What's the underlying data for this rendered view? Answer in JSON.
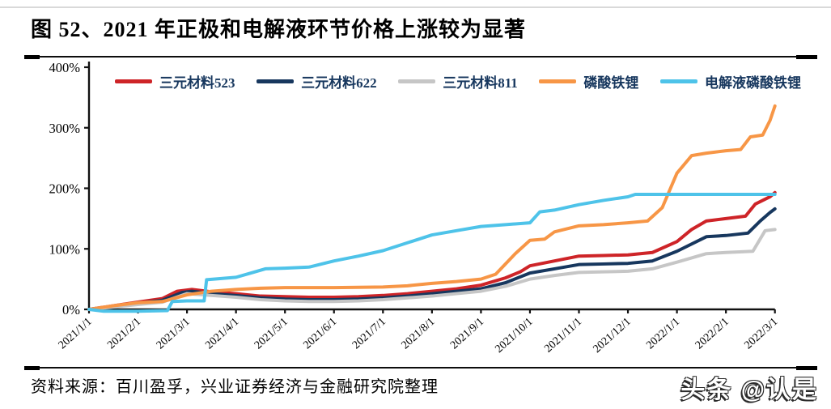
{
  "page": {
    "title": "图 52、2021 年正极和电解液环节价格上涨较为显著",
    "source_note": "资料来源：百川盈孚，兴业证券经济与金融研究院整理",
    "watermark": "头条 @认是"
  },
  "colors": {
    "title_text": "#000000",
    "legend_text": "#17375E",
    "axis": "#111111",
    "rule": "#000000",
    "series_523": "#CE2428",
    "series_622": "#17375E",
    "series_811": "#C6C6C6",
    "series_lfp": "#F79646",
    "series_electrolyte_lfp": "#4EC3E9"
  },
  "chart_data": {
    "type": "line",
    "title": "",
    "xlabel": "",
    "ylabel": "",
    "ylim": [
      0,
      400
    ],
    "grid": false,
    "legend_position": "top",
    "y_ticks": [
      {
        "value": 0,
        "label": "0%"
      },
      {
        "value": 100,
        "label": "100%"
      },
      {
        "value": 200,
        "label": "200%"
      },
      {
        "value": 300,
        "label": "300%"
      },
      {
        "value": 400,
        "label": "400%"
      }
    ],
    "x_tick_labels": [
      "2021/1/1",
      "2021/2/1",
      "2021/3/1",
      "2021/4/1",
      "2021/5/1",
      "2021/6/1",
      "2021/7/1",
      "2021/8/1",
      "2021/9/1",
      "2021/10/1",
      "2021/11/1",
      "2021/12/1",
      "2022/1/1",
      "2022/2/1",
      "2022/3/1"
    ],
    "x_unit": "months_since_2021_01_01",
    "series": [
      {
        "name": "三元材料523",
        "color": "#CE2428",
        "points": [
          [
            0,
            0
          ],
          [
            0.5,
            6
          ],
          [
            1,
            12
          ],
          [
            1.5,
            18
          ],
          [
            1.8,
            30
          ],
          [
            2.1,
            33
          ],
          [
            2.5,
            29
          ],
          [
            3,
            26
          ],
          [
            3.5,
            22
          ],
          [
            4,
            21
          ],
          [
            4.5,
            20
          ],
          [
            5,
            20
          ],
          [
            5.5,
            21
          ],
          [
            6,
            23
          ],
          [
            6.5,
            26
          ],
          [
            7,
            30
          ],
          [
            7.5,
            34
          ],
          [
            8,
            40
          ],
          [
            8.5,
            52
          ],
          [
            8.8,
            62
          ],
          [
            9,
            72
          ],
          [
            9.5,
            80
          ],
          [
            10,
            88
          ],
          [
            10.5,
            89
          ],
          [
            11,
            90
          ],
          [
            11.5,
            94
          ],
          [
            12,
            112
          ],
          [
            12.3,
            132
          ],
          [
            12.6,
            146
          ],
          [
            13,
            150
          ],
          [
            13.4,
            154
          ],
          [
            13.6,
            174
          ],
          [
            13.9,
            186
          ],
          [
            14,
            193
          ]
        ]
      },
      {
        "name": "三元材料622",
        "color": "#17375E",
        "points": [
          [
            0,
            0
          ],
          [
            0.5,
            5
          ],
          [
            1,
            10
          ],
          [
            1.5,
            15
          ],
          [
            1.9,
            28
          ],
          [
            2.1,
            30
          ],
          [
            2.5,
            26
          ],
          [
            3,
            23
          ],
          [
            3.5,
            19
          ],
          [
            4,
            17
          ],
          [
            4.5,
            16
          ],
          [
            5,
            16
          ],
          [
            5.5,
            17
          ],
          [
            6,
            19
          ],
          [
            6.5,
            22
          ],
          [
            7,
            26
          ],
          [
            7.5,
            30
          ],
          [
            8,
            34
          ],
          [
            8.5,
            44
          ],
          [
            9,
            60
          ],
          [
            9.5,
            67
          ],
          [
            10,
            74
          ],
          [
            10.5,
            75
          ],
          [
            11,
            76
          ],
          [
            11.5,
            80
          ],
          [
            12,
            96
          ],
          [
            12.6,
            120
          ],
          [
            13,
            122
          ],
          [
            13.45,
            126
          ],
          [
            13.7,
            146
          ],
          [
            13.9,
            160
          ],
          [
            14,
            166
          ]
        ]
      },
      {
        "name": "三元材料811",
        "color": "#C6C6C6",
        "points": [
          [
            0,
            0
          ],
          [
            0.5,
            4
          ],
          [
            1,
            8
          ],
          [
            1.5,
            12
          ],
          [
            2,
            26
          ],
          [
            2.5,
            23
          ],
          [
            3,
            20
          ],
          [
            3.5,
            16
          ],
          [
            4,
            14
          ],
          [
            4.5,
            13
          ],
          [
            5,
            13
          ],
          [
            5.5,
            14
          ],
          [
            6,
            16
          ],
          [
            6.5,
            19
          ],
          [
            7,
            22
          ],
          [
            7.5,
            26
          ],
          [
            8,
            30
          ],
          [
            8.5,
            38
          ],
          [
            9,
            50
          ],
          [
            9.5,
            56
          ],
          [
            10,
            61
          ],
          [
            10.5,
            62
          ],
          [
            11,
            63
          ],
          [
            11.5,
            67
          ],
          [
            12,
            78
          ],
          [
            12.6,
            92
          ],
          [
            13,
            94
          ],
          [
            13.55,
            96
          ],
          [
            13.8,
            130
          ],
          [
            14,
            132
          ]
        ]
      },
      {
        "name": "磷酸铁锂",
        "color": "#F79646",
        "points": [
          [
            0,
            0
          ],
          [
            0.5,
            6
          ],
          [
            1,
            11
          ],
          [
            1.5,
            13
          ],
          [
            2,
            24
          ],
          [
            2.5,
            30
          ],
          [
            3,
            33
          ],
          [
            3.5,
            35
          ],
          [
            4,
            36
          ],
          [
            5,
            36
          ],
          [
            6,
            37
          ],
          [
            6.5,
            39
          ],
          [
            7,
            43
          ],
          [
            7.5,
            46
          ],
          [
            8,
            50
          ],
          [
            8.3,
            58
          ],
          [
            8.7,
            92
          ],
          [
            9,
            114
          ],
          [
            9.3,
            116
          ],
          [
            9.5,
            128
          ],
          [
            10,
            138
          ],
          [
            10.5,
            140
          ],
          [
            11,
            143
          ],
          [
            11.4,
            146
          ],
          [
            11.7,
            168
          ],
          [
            12,
            225
          ],
          [
            12.3,
            254
          ],
          [
            12.6,
            258
          ],
          [
            13,
            262
          ],
          [
            13.3,
            264
          ],
          [
            13.5,
            285
          ],
          [
            13.75,
            288
          ],
          [
            13.9,
            312
          ],
          [
            14,
            336
          ]
        ]
      },
      {
        "name": "电解液磷酸铁锂",
        "color": "#4EC3E9",
        "points": [
          [
            0,
            0
          ],
          [
            0.3,
            -3
          ],
          [
            1,
            -3
          ],
          [
            1.6,
            -2
          ],
          [
            1.7,
            13
          ],
          [
            2,
            14
          ],
          [
            2.35,
            14
          ],
          [
            2.4,
            49
          ],
          [
            3,
            53
          ],
          [
            3.3,
            60
          ],
          [
            3.6,
            67
          ],
          [
            4,
            68
          ],
          [
            4.5,
            70
          ],
          [
            5,
            80
          ],
          [
            5.5,
            88
          ],
          [
            6,
            97
          ],
          [
            6.5,
            110
          ],
          [
            7,
            123
          ],
          [
            7.5,
            130
          ],
          [
            8,
            137
          ],
          [
            8.5,
            140
          ],
          [
            9,
            143
          ],
          [
            9.2,
            161
          ],
          [
            9.5,
            164
          ],
          [
            10,
            173
          ],
          [
            10.5,
            180
          ],
          [
            11,
            186
          ],
          [
            11.15,
            190
          ],
          [
            14,
            190
          ]
        ]
      }
    ]
  }
}
